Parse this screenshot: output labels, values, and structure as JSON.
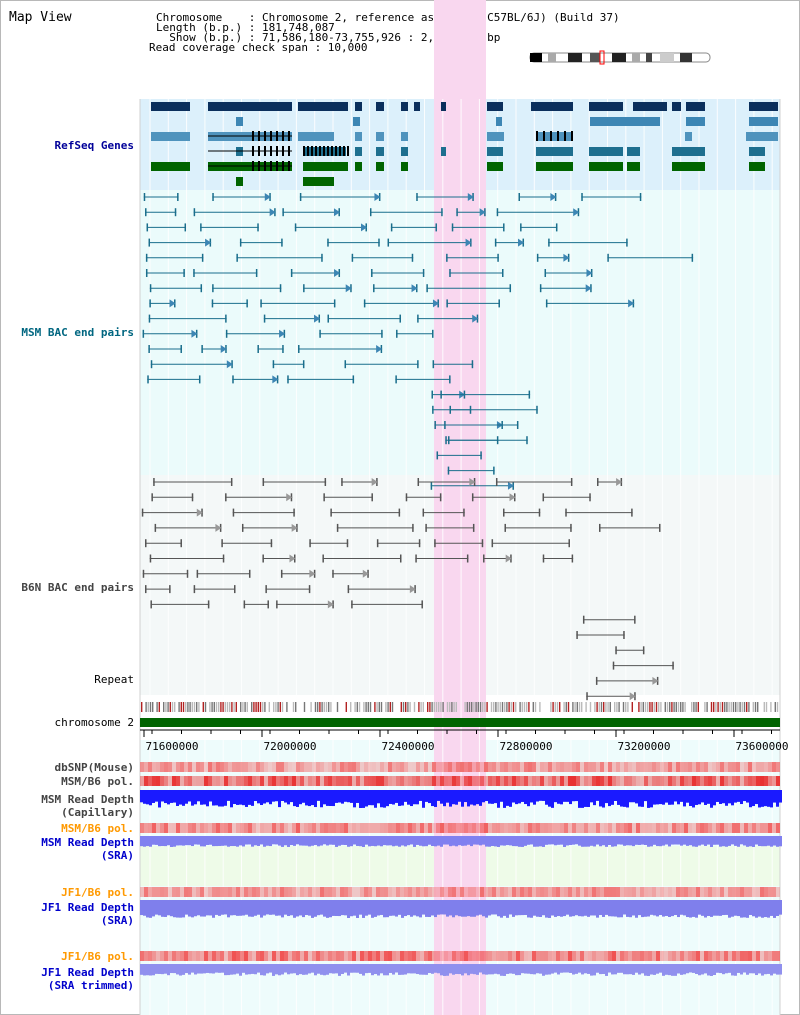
{
  "title": "Map View",
  "header": {
    "line1": "Chromosome    : Chromosome 2, reference assembly (C57BL/6J) (Build 37)",
    "line2": "Length (b.p.) : 181,748,087",
    "line3": "  Show (b.p.) : 71,586,180-73,755,926 : 2,169,747 bp",
    "line4": "Read coverage check span : 10,000"
  },
  "tracks": {
    "refseq": "RefSeq Genes",
    "msm_bac": "MSM BAC end pairs",
    "b6n_bac": "B6N BAC end pairs",
    "repeat": "Repeat",
    "chromosome": "chromosome 2",
    "dbsnp": "dbSNP(Mouse)",
    "msm_pol1": "MSM/B6 pol.",
    "msm_depth_cap1": "MSM Read Depth",
    "msm_depth_cap2": "(Capillary)",
    "msm_pol2": "MSM/B6 pol.",
    "msm_depth_sra1": "MSM Read Depth",
    "msm_depth_sra2": "(SRA)",
    "jf1_pol1": "JF1/B6 pol.",
    "jf1_depth_sra1": "JF1 Read Depth",
    "jf1_depth_sra2": "(SRA)",
    "jf1_pol2": "JF1/B6 pol.",
    "jf1_depth_trim1": "JF1 Read Depth",
    "jf1_depth_trim2": "(SRA trimmed)"
  },
  "axis": {
    "ticks": [
      "71600000",
      "72000000",
      "72400000",
      "72800000",
      "73200000",
      "73600000"
    ]
  },
  "colors": {
    "highlight": "#f9d7ef",
    "refseq_bg": "#dcf0fb",
    "bac_bg": "#ebfbfb",
    "chromosome_bar": "#006400",
    "label_refseq": "#000099",
    "label_msm": "#006680",
    "label_b6n": "#444444",
    "label_orange": "#ff9900",
    "label_blue": "#0000cc"
  }
}
